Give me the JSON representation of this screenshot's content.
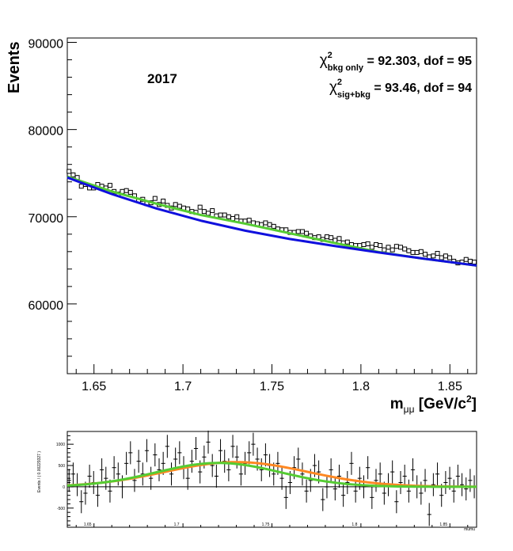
{
  "chart_data": [
    {
      "type": "scatter",
      "panel": "main",
      "year_label": "2017",
      "ylabel": "Events",
      "xlabel_base": "m",
      "xlabel_sub": "μμ",
      "xlabel_units": " [GeV/c",
      "xlabel_units_sup": "2",
      "xlabel_units_end": "]",
      "chi2_bkg": {
        "symbol": "χ",
        "sup": "2",
        "sub": "bkg only",
        "text": " = 92.303, dof = 95"
      },
      "chi2_sig": {
        "symbol": "χ",
        "sup": "2",
        "sub": "sig+bkg",
        "text": " = 93.46, dof = 94"
      },
      "xlim": [
        1.635,
        1.865
      ],
      "ylim": [
        52000,
        90500
      ],
      "x_ticks": [
        1.65,
        1.7,
        1.75,
        1.8,
        1.85
      ],
      "x_tick_labels": [
        "1.65",
        "1.7",
        "1.75",
        "1.8",
        "1.85"
      ],
      "y_ticks": [
        60000,
        70000,
        80000,
        90000
      ],
      "y_tick_labels": [
        "60000",
        "70000",
        "80000",
        "90000"
      ],
      "bkg_curve": {
        "color": "#1010dd",
        "x": [
          1.635,
          1.66,
          1.685,
          1.71,
          1.735,
          1.76,
          1.785,
          1.81,
          1.835,
          1.865
        ],
        "y": [
          74500,
          72600,
          70950,
          69550,
          68400,
          67450,
          66650,
          65900,
          65200,
          64400
        ]
      },
      "sig_bkg_curve": {
        "color": "#55cc33",
        "x": [
          1.635,
          1.66,
          1.685,
          1.71,
          1.735,
          1.76,
          1.785,
          1.81,
          1.835,
          1.865
        ],
        "y": [
          74600,
          72900,
          71500,
          70200,
          69200,
          68100,
          67000,
          65950,
          65200,
          64400
        ]
      },
      "points": {
        "x": [
          1.636,
          1.6383,
          1.6406,
          1.6429,
          1.6452,
          1.6475,
          1.6498,
          1.6521,
          1.6544,
          1.6567,
          1.659,
          1.6613,
          1.6636,
          1.6659,
          1.6682,
          1.6705,
          1.6728,
          1.6751,
          1.6774,
          1.6797,
          1.682,
          1.6843,
          1.6866,
          1.6889,
          1.6912,
          1.6935,
          1.6958,
          1.6981,
          1.7004,
          1.7027,
          1.705,
          1.7073,
          1.7096,
          1.7119,
          1.7142,
          1.7165,
          1.7188,
          1.7211,
          1.7234,
          1.7257,
          1.728,
          1.7303,
          1.7326,
          1.7349,
          1.7372,
          1.7395,
          1.7418,
          1.7441,
          1.7464,
          1.7487,
          1.751,
          1.7533,
          1.7556,
          1.7579,
          1.7602,
          1.7625,
          1.7648,
          1.7671,
          1.7694,
          1.7717,
          1.774,
          1.7763,
          1.7786,
          1.7809,
          1.7832,
          1.7855,
          1.7878,
          1.7901,
          1.7924,
          1.7947,
          1.797,
          1.7993,
          1.8016,
          1.8039,
          1.8062,
          1.8085,
          1.8108,
          1.8131,
          1.8154,
          1.8177,
          1.82,
          1.8223,
          1.8246,
          1.8269,
          1.8292,
          1.8315,
          1.8338,
          1.8361,
          1.8384,
          1.8407,
          1.843,
          1.8453,
          1.8476,
          1.8499,
          1.8522,
          1.8545,
          1.8568,
          1.8591,
          1.8614,
          1.8637
        ],
        "y": [
          75200,
          74800,
          74500,
          73500,
          73700,
          73300,
          73300,
          73700,
          73500,
          73300,
          73600,
          72900,
          72600,
          72900,
          73000,
          72800,
          72400,
          71900,
          72000,
          71500,
          71600,
          72100,
          71400,
          71800,
          71300,
          71000,
          71400,
          71200,
          71000,
          70900,
          70600,
          70500,
          71100,
          70600,
          70400,
          70700,
          70100,
          70200,
          70200,
          70000,
          69800,
          70000,
          69500,
          69500,
          69600,
          69300,
          69200,
          69100,
          69300,
          69100,
          68900,
          68600,
          68500,
          68500,
          68200,
          68200,
          68300,
          68300,
          68100,
          67800,
          67600,
          67700,
          67400,
          67700,
          67600,
          67300,
          67500,
          67000,
          67100,
          66800,
          66700,
          66700,
          66800,
          66900,
          66500,
          66800,
          66700,
          66200,
          66500,
          66200,
          66600,
          66500,
          66300,
          66100,
          65900,
          65900,
          66000,
          65700,
          65400,
          65500,
          65800,
          65300,
          65500,
          65300,
          64900,
          64700,
          64800,
          65100,
          64900,
          64800
        ]
      },
      "error": 270
    },
    {
      "type": "scatter",
      "panel": "residual",
      "ylabel": "Events / ( 0.00229327 )",
      "xlabel": "mumu",
      "xlim": [
        1.635,
        1.865
      ],
      "ylim": [
        -950,
        1300
      ],
      "x_ticks": [
        1.65,
        1.7,
        1.75,
        1.8,
        1.85
      ],
      "x_tick_labels": [
        "1.65",
        "1.7",
        "1.75",
        "1.8",
        "1.85"
      ],
      "y_ticks": [
        -500,
        0,
        500,
        1000
      ],
      "y_tick_labels": [
        "-500",
        "0",
        "500",
        "1000"
      ],
      "sig_bkg_curve": {
        "color": "#ff8822",
        "mu": 1.73,
        "sigma": 0.04,
        "amp": 580
      },
      "bkg_curve": {
        "color": "#55cc33",
        "mu": 1.72,
        "sigma": 0.035,
        "amp": 560
      },
      "points": {
        "x": [
          1.636,
          1.6383,
          1.6406,
          1.6429,
          1.6452,
          1.6475,
          1.6498,
          1.6521,
          1.6544,
          1.6567,
          1.659,
          1.6613,
          1.6636,
          1.6659,
          1.6682,
          1.6705,
          1.6728,
          1.6751,
          1.6774,
          1.6797,
          1.682,
          1.6843,
          1.6866,
          1.6889,
          1.6912,
          1.6935,
          1.6958,
          1.6981,
          1.7004,
          1.7027,
          1.705,
          1.7073,
          1.7096,
          1.7119,
          1.7142,
          1.7165,
          1.7188,
          1.7211,
          1.7234,
          1.7257,
          1.728,
          1.7303,
          1.7326,
          1.7349,
          1.7372,
          1.7395,
          1.7418,
          1.7441,
          1.7464,
          1.7487,
          1.751,
          1.7533,
          1.7556,
          1.7579,
          1.7602,
          1.7625,
          1.7648,
          1.7671,
          1.7694,
          1.7717,
          1.774,
          1.7763,
          1.7786,
          1.7809,
          1.7832,
          1.7855,
          1.7878,
          1.7901,
          1.7924,
          1.7947,
          1.797,
          1.7993,
          1.8016,
          1.8039,
          1.8062,
          1.8085,
          1.8108,
          1.8131,
          1.8154,
          1.8177,
          1.82,
          1.8223,
          1.8246,
          1.8269,
          1.8292,
          1.8315,
          1.8338,
          1.8361,
          1.8384,
          1.8407,
          1.843,
          1.8453,
          1.8476,
          1.8499,
          1.8522,
          1.8545,
          1.8568,
          1.8591,
          1.8614,
          1.8637
        ],
        "y": [
          150,
          300,
          50,
          -350,
          -150,
          250,
          100,
          -200,
          400,
          200,
          -100,
          450,
          300,
          0,
          550,
          800,
          150,
          600,
          300,
          850,
          200,
          750,
          400,
          550,
          950,
          300,
          650,
          800,
          450,
          200,
          600,
          900,
          350,
          700,
          1050,
          500,
          250,
          850,
          600,
          400,
          950,
          700,
          300,
          550,
          800,
          1000,
          650,
          400,
          750,
          500,
          300,
          550,
          200,
          -250,
          100,
          450,
          650,
          300,
          -100,
          150,
          500,
          350,
          -300,
          0,
          400,
          -50,
          250,
          -200,
          100,
          550,
          -100,
          200,
          0,
          450,
          -250,
          150,
          300,
          -150,
          50,
          350,
          -350,
          100,
          250,
          -100,
          400,
          0,
          -150,
          150,
          -650,
          50,
          300,
          -200,
          100,
          200,
          -100,
          250,
          50,
          -50,
          150,
          0
        ]
      },
      "error": 270
    }
  ]
}
